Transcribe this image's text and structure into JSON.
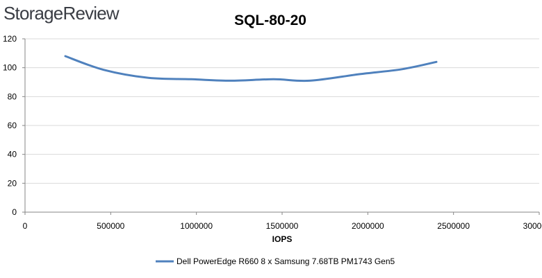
{
  "brand": {
    "logo_text": "StorageReview"
  },
  "chart_data": {
    "type": "line",
    "title": "SQL-80-20",
    "xlabel": "IOPS",
    "ylabel": "",
    "xlim": [
      0,
      3000000
    ],
    "ylim": [
      0,
      120
    ],
    "x_ticks": [
      0,
      500000,
      1000000,
      1500000,
      2000000,
      2500000,
      3000000
    ],
    "x_tick_labels": [
      "0",
      "500000",
      "1000000",
      "1500000",
      "2000000",
      "2500000",
      "3000000"
    ],
    "y_ticks": [
      0,
      20,
      40,
      60,
      80,
      100,
      120
    ],
    "y_tick_labels": [
      "0",
      "20",
      "40",
      "60",
      "80",
      "100",
      "120"
    ],
    "grid": "horizontal",
    "legend_position": "bottom",
    "series": [
      {
        "name": "Dell PowerEdge R660 8 x Samsung 7.68TB PM1743 Gen5",
        "color": "#4f81bd",
        "x": [
          235000,
          460000,
          720000,
          970000,
          1200000,
          1450000,
          1660000,
          1950000,
          2200000,
          2400000
        ],
        "y": [
          108,
          98.5,
          93,
          92,
          91,
          92,
          91,
          95.5,
          99,
          104
        ]
      }
    ]
  }
}
